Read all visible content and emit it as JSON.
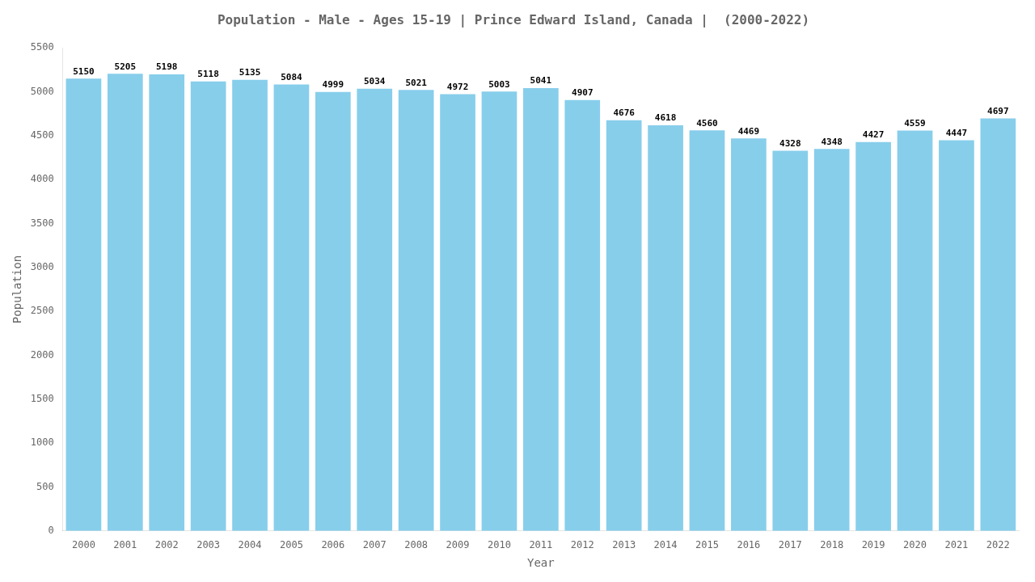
{
  "chart_data": {
    "type": "bar",
    "title": "Population - Male - Ages 15-19 | Prince Edward Island, Canada |  (2000-2022)",
    "x_label": "Year",
    "y_label": "Population",
    "categories": [
      "2000",
      "2001",
      "2002",
      "2003",
      "2004",
      "2005",
      "2006",
      "2007",
      "2008",
      "2009",
      "2010",
      "2011",
      "2012",
      "2013",
      "2014",
      "2015",
      "2016",
      "2017",
      "2018",
      "2019",
      "2020",
      "2021",
      "2022"
    ],
    "values": [
      5150,
      5205,
      5198,
      5118,
      5135,
      5084,
      4999,
      5034,
      5021,
      4972,
      5003,
      5041,
      4907,
      4676,
      4618,
      4560,
      4469,
      4328,
      4348,
      4427,
      4559,
      4447,
      4697
    ],
    "color": "#87CEEB",
    "ylim": [
      0,
      5500
    ],
    "yticks": [
      0,
      500,
      1000,
      1500,
      2000,
      2500,
      3000,
      3500,
      4000,
      4500,
      5000,
      5500
    ],
    "grid": false,
    "data_labels": true
  }
}
